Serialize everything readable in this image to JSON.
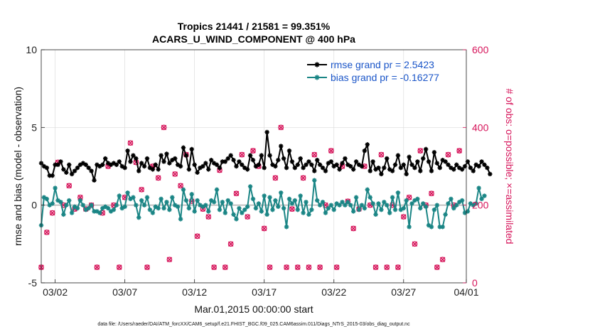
{
  "chart_data": {
    "type": "line",
    "title": "Tropics 21441 / 21581 = 99.351%",
    "subtitle": "ACARS_U_WIND_COMPONENT @ 400 hPa",
    "xlabel": "Mar.01,2015 00:00:00 start",
    "ylabel": "rmse and bias (model - observation)",
    "y2label": "# of obs: o=possible; ×=assimilated",
    "footnote": "data file: /Users/raeder/DAI/ATM_forcXX/CAM6_setup/f.e21.FHIST_BGC.f09_025.CAM6assim.011/Diags_NTrS_2015-03/obs_diag_output.nc",
    "xlim": [
      1,
      31.5
    ],
    "ylim": [
      -5,
      10
    ],
    "y2lim": [
      0,
      600
    ],
    "x_ticks": [
      {
        "value": 2,
        "label": "03/02"
      },
      {
        "value": 7,
        "label": "03/07"
      },
      {
        "value": 12,
        "label": "03/12"
      },
      {
        "value": 17,
        "label": "03/17"
      },
      {
        "value": 22,
        "label": "03/22"
      },
      {
        "value": 27,
        "label": "03/27"
      },
      {
        "value": 31.5,
        "label": "04/01"
      }
    ],
    "y_ticks": [
      {
        "value": -5,
        "label": "-5"
      },
      {
        "value": 0,
        "label": "0"
      },
      {
        "value": 5,
        "label": "5"
      },
      {
        "value": 10,
        "label": "10"
      }
    ],
    "y2_ticks": [
      {
        "value": 0,
        "label": "0"
      },
      {
        "value": 200,
        "label": "200"
      },
      {
        "value": 400,
        "label": "400"
      },
      {
        "value": 600,
        "label": "600"
      }
    ],
    "zero_line": 0,
    "colors": {
      "rmse": "#000000",
      "bias": "#1a8585",
      "obs": "#d6145a",
      "axis": "#222222",
      "right_axis": "#d6145a",
      "legend_text": "#1a55c8",
      "zero_line": "#b0b0b0"
    },
    "legend_position": "top-right",
    "series": [
      {
        "name": "rmse grand pr = 2.5423",
        "color": "#000000",
        "marker": "asterisk",
        "values": [
          2.7,
          2.5,
          2.4,
          1.9,
          1.9,
          2.6,
          2.6,
          2.8,
          2.3,
          2.1,
          2.6,
          2.0,
          2.2,
          2.4,
          2.6,
          2.7,
          2.6,
          2.4,
          2.2,
          1.6,
          2.6,
          2.5,
          2.6,
          3.0,
          2.7,
          2.6,
          2.7,
          2.6,
          2.8,
          2.5,
          2.4,
          3.5,
          2.8,
          3.2,
          3.0,
          2.2,
          2.7,
          2.5,
          3.0,
          2.4,
          2.3,
          2.6,
          2.3,
          3.2,
          2.8,
          3.3,
          2.7,
          2.9,
          3.0,
          2.6,
          2.5,
          3.7,
          3.2,
          2.3,
          3.6,
          2.6,
          2.1,
          2.4,
          2.5,
          2.7,
          2.3,
          2.9,
          2.7,
          2.6,
          2.4,
          2.8,
          2.8,
          3.0,
          3.2,
          2.9,
          2.5,
          2.8,
          2.6,
          2.4,
          2.3,
          3.2,
          2.9,
          2.5,
          2.6,
          3.2,
          2.4,
          4.7,
          3.2,
          2.6,
          2.5,
          2.9,
          3.8,
          3.0,
          2.4,
          3.5,
          2.8,
          2.4,
          2.6,
          3.0,
          2.4,
          2.6,
          2.8,
          2.6,
          2.2,
          2.9,
          2.6,
          2.4,
          2.2,
          2.7,
          2.8,
          2.5,
          2.6,
          2.3,
          2.7,
          3.0,
          2.6,
          2.5,
          2.3,
          2.8,
          2.6,
          2.5,
          3.5,
          3.9,
          2.2,
          2.8,
          2.3,
          2.4,
          2.0,
          2.4,
          3.0,
          2.3,
          2.2,
          2.6,
          3.2,
          2.4,
          2.6,
          2.0,
          3.1,
          2.6,
          2.4,
          2.8,
          2.2,
          3.0,
          3.6,
          2.8,
          2.2,
          3.4,
          2.7,
          2.4,
          2.9,
          2.8,
          2.6,
          2.4,
          2.3,
          2.6,
          2.4,
          2.3,
          2.5,
          2.8,
          2.4,
          2.2,
          2.6,
          2.5,
          2.8,
          2.6,
          2.4,
          2.0
        ]
      },
      {
        "name": "bias grand pr = -0.16277",
        "color": "#1a8585",
        "marker": "asterisk",
        "values": [
          -1.3,
          0.5,
          0.4,
          0.0,
          0.1,
          1.1,
          0.3,
          0.2,
          -0.6,
          0.0,
          0.3,
          -0.5,
          -0.1,
          -0.2,
          0.3,
          0.0,
          -0.3,
          -0.2,
          0.0,
          -0.4,
          -0.4,
          -0.5,
          -0.2,
          -0.1,
          -0.2,
          -0.4,
          -0.3,
          0.0,
          0.6,
          -0.2,
          -0.1,
          0.8,
          0.4,
          0.5,
          0.0,
          -0.8,
          0.3,
          0.0,
          0.5,
          -0.3,
          -0.5,
          -0.1,
          -0.2,
          0.4,
          -0.2,
          0.2,
          -0.3,
          0.5,
          0.0,
          -0.1,
          -0.9,
          1.0,
          0.3,
          -0.2,
          0.7,
          -0.4,
          0.3,
          0.0,
          -0.1,
          0.0,
          -0.4,
          0.3,
          0.2,
          1.0,
          -0.3,
          0.2,
          -0.5,
          0.3,
          0.1,
          -0.6,
          -0.9,
          -0.2,
          -0.5,
          -0.3,
          -0.1,
          1.2,
          0.4,
          -0.2,
          0.1,
          -0.4,
          0.6,
          -0.6,
          0.5,
          -0.3,
          0.3,
          -0.1,
          0.8,
          -0.2,
          -1.4,
          0.4,
          0.1,
          0.3,
          -0.3,
          0.6,
          -0.5,
          0.2,
          -0.6,
          -0.3,
          1.6,
          0.3,
          0.0,
          0.2,
          -0.5,
          -0.2,
          0.0,
          -0.3,
          0.1,
          0.0,
          0.2,
          0.0,
          0.2,
          0.0,
          -0.4,
          0.5,
          -0.3,
          0.0,
          -0.2,
          1.0,
          0.5,
          0.1,
          -0.6,
          0.1,
          -0.3,
          0.2,
          0.0,
          -0.5,
          0.5,
          -0.3,
          0.8,
          -0.3,
          -0.2,
          0.3,
          -1.4,
          0.1,
          0.3,
          0.4,
          -0.2,
          0.1,
          -0.1,
          -1.3,
          -1.4,
          -0.3,
          0.0,
          -1.4,
          -1.4,
          -0.6,
          0.1,
          0.4,
          -0.2,
          0.0,
          0.2,
          0.3,
          -0.5,
          -0.4,
          0.1,
          0.0,
          0.1,
          1.1,
          0.4,
          0.6
        ]
      },
      {
        "name": "obs possible",
        "color": "#d6145a",
        "marker": "circle",
        "axis": "right",
        "values": [
          40,
          0,
          130,
          15,
          180,
          40,
          310,
          30,
          200,
          45,
          250,
          320,
          190,
          40,
          220,
          40,
          190,
          200,
          200,
          170,
          40,
          330,
          180,
          320,
          300,
          25,
          200,
          180,
          40,
          40,
          220,
          160,
          360,
          240,
          310,
          200,
          240,
          40,
          40,
          300,
          300,
          330,
          270,
          40,
          400,
          200,
          60,
          330,
          280,
          300,
          250,
          320,
          330,
          40,
          210,
          40,
          120,
          310,
          190,
          40,
          170,
          180,
          40,
          50,
          290,
          230,
          40,
          170,
          100,
          200,
          230,
          300,
          330,
          200,
          170,
          40,
          340,
          240,
          300,
          300,
          140,
          150,
          40,
          230,
          270,
          40,
          400,
          190,
          40,
          200,
          190,
          300,
          40,
          200,
          270,
          200,
          40,
          160,
          330,
          240,
          40,
          40,
          200,
          140,
          340,
          250,
          40,
          280,
          300,
          170,
          210,
          270,
          140,
          40,
          190,
          320,
          300,
          40,
          200,
          240,
          40,
          220,
          330,
          160,
          40,
          200,
          200,
          340,
          40,
          270,
          170,
          290,
          220,
          40,
          100,
          40,
          340,
          300,
          200,
          200,
          230,
          170,
          40,
          200,
          60,
          300,
          330,
          0,
          200,
          200,
          340,
          10
        ]
      },
      {
        "name": "obs assimilated",
        "color": "#d6145a",
        "marker": "cross",
        "axis": "right",
        "values": [
          40,
          0,
          130,
          15,
          180,
          40,
          310,
          30,
          200,
          45,
          250,
          320,
          190,
          40,
          220,
          40,
          190,
          200,
          200,
          170,
          40,
          330,
          180,
          320,
          300,
          25,
          200,
          180,
          40,
          40,
          220,
          160,
          360,
          240,
          310,
          200,
          240,
          40,
          40,
          300,
          300,
          330,
          270,
          40,
          400,
          200,
          60,
          330,
          280,
          300,
          250,
          320,
          330,
          40,
          210,
          40,
          120,
          310,
          190,
          40,
          170,
          180,
          40,
          50,
          290,
          230,
          40,
          170,
          100,
          200,
          230,
          300,
          330,
          200,
          170,
          40,
          340,
          240,
          300,
          300,
          140,
          150,
          40,
          230,
          270,
          40,
          400,
          190,
          40,
          200,
          190,
          300,
          40,
          200,
          270,
          200,
          40,
          160,
          330,
          240,
          40,
          40,
          200,
          140,
          340,
          250,
          40,
          280,
          300,
          170,
          210,
          270,
          140,
          40,
          190,
          320,
          300,
          40,
          200,
          240,
          40,
          220,
          330,
          160,
          40,
          200,
          200,
          340,
          40,
          270,
          170,
          290,
          220,
          40,
          100,
          40,
          340,
          300,
          200,
          200,
          230,
          170,
          40,
          200,
          60,
          300,
          330,
          0,
          200,
          200,
          340,
          10
        ]
      }
    ]
  }
}
